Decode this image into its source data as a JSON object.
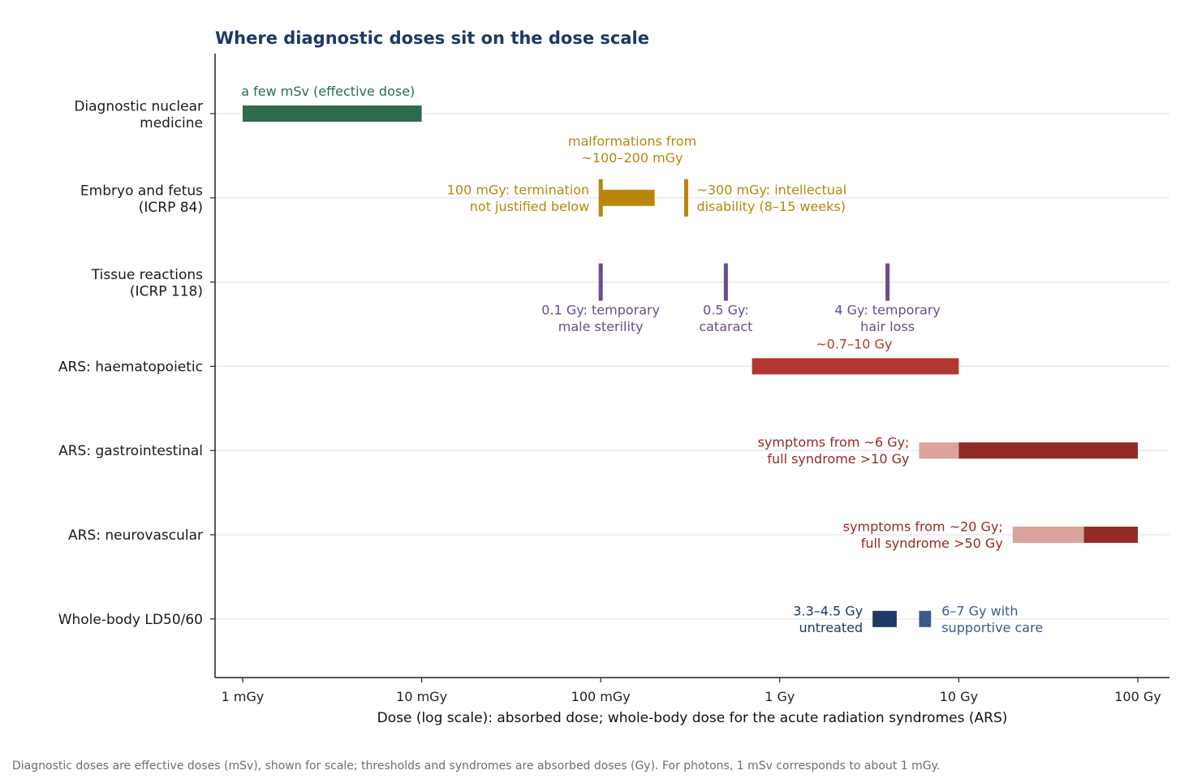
{
  "chart_data": {
    "type": "range-bar",
    "title": "Where diagnostic doses sit on the dose scale",
    "xlabel": "Dose (log scale): absorbed dose; whole-body dose for the acute radiation syndromes (ARS)",
    "x_scale": "log",
    "x_unit": "Gy",
    "xlim": [
      0.00085,
      150
    ],
    "grid": "horizontal",
    "x_ticks": [
      {
        "value": 0.001,
        "label": "1 mGy"
      },
      {
        "value": 0.01,
        "label": "10 mGy"
      },
      {
        "value": 0.1,
        "label": "100 mGy"
      },
      {
        "value": 1,
        "label": "1 Gy"
      },
      {
        "value": 10,
        "label": "10 Gy"
      },
      {
        "value": 100,
        "label": "100 Gy"
      }
    ],
    "rows": [
      {
        "label": [
          "Diagnostic nuclear",
          "medicine"
        ],
        "ranges": [
          {
            "from": 0.001,
            "to": 0.01,
            "color": "#2e6b4e"
          }
        ],
        "markers": [],
        "annotations": [
          {
            "lines": [
              "a few mSv (effective dose)"
            ],
            "x": 0.003,
            "pos": "above",
            "color": "#2e6b4e"
          }
        ]
      },
      {
        "label": [
          "Embryo and fetus",
          "(ICRP 84)"
        ],
        "ranges": [
          {
            "from": 0.1,
            "to": 0.2,
            "color": "#b8860b"
          }
        ],
        "markers": [
          {
            "x": 0.1,
            "color": "#b8860b"
          },
          {
            "x": 0.3,
            "color": "#b8860b"
          }
        ],
        "annotations": [
          {
            "lines": [
              "malformations from",
              "~100–200 mGy"
            ],
            "x": 0.15,
            "pos": "above-high",
            "color": "#b8860b"
          },
          {
            "lines": [
              "100 mGy: termination",
              "not justified below"
            ],
            "x": 0.1,
            "pos": "left",
            "color": "#b8860b"
          },
          {
            "lines": [
              "~300 mGy: intellectual",
              "disability (8–15 weeks)"
            ],
            "x": 0.3,
            "pos": "right",
            "color": "#b8860b"
          }
        ]
      },
      {
        "label": [
          "Tissue reactions",
          "(ICRP 118)"
        ],
        "ranges": [],
        "markers": [
          {
            "x": 0.1,
            "color": "#6b4c8e"
          },
          {
            "x": 0.5,
            "color": "#6b4c8e"
          },
          {
            "x": 4,
            "color": "#6b4c8e"
          }
        ],
        "annotations": [
          {
            "lines": [
              "0.1 Gy: temporary",
              "male sterility"
            ],
            "x": 0.1,
            "pos": "below",
            "color": "#6b4c8e"
          },
          {
            "lines": [
              "0.5 Gy:",
              "cataract"
            ],
            "x": 0.5,
            "pos": "below",
            "color": "#6b4c8e"
          },
          {
            "lines": [
              "4 Gy: temporary",
              "hair loss"
            ],
            "x": 4,
            "pos": "below",
            "color": "#6b4c8e"
          }
        ]
      },
      {
        "label": [
          "ARS: haematopoietic"
        ],
        "ranges": [
          {
            "from": 0.7,
            "to": 10,
            "color": "#b0382f"
          }
        ],
        "markers": [],
        "annotations": [
          {
            "lines": [
              "~0.7–10 Gy"
            ],
            "x": 2.6,
            "pos": "above",
            "color": "#b0382f"
          }
        ]
      },
      {
        "label": [
          "ARS: gastrointestinal"
        ],
        "ranges": [
          {
            "from": 6,
            "to": 10,
            "color": "#dba39c"
          },
          {
            "from": 10,
            "to": 100,
            "color": "#922a25"
          }
        ],
        "markers": [],
        "annotations": [
          {
            "lines": [
              "symptoms from ~6 Gy;",
              "full syndrome >10 Gy"
            ],
            "x": 6,
            "pos": "left",
            "color": "#922a25"
          }
        ]
      },
      {
        "label": [
          "ARS: neurovascular"
        ],
        "ranges": [
          {
            "from": 20,
            "to": 50,
            "color": "#dba39c"
          },
          {
            "from": 50,
            "to": 100,
            "color": "#922a25"
          }
        ],
        "markers": [],
        "annotations": [
          {
            "lines": [
              "symptoms from ~20 Gy;",
              "full syndrome >50 Gy"
            ],
            "x": 20,
            "pos": "left",
            "color": "#922a25"
          }
        ]
      },
      {
        "label": [
          "Whole-body LD50/60"
        ],
        "ranges": [
          {
            "from": 3.3,
            "to": 4.5,
            "color": "#1f3864"
          },
          {
            "from": 6,
            "to": 7,
            "color": "#3d5a8a"
          }
        ],
        "markers": [],
        "annotations": [
          {
            "lines": [
              "3.3–4.5 Gy",
              "untreated"
            ],
            "x": 3.3,
            "pos": "left",
            "color": "#1f3864"
          },
          {
            "lines": [
              "6–7 Gy with",
              "supportive care"
            ],
            "x": 7,
            "pos": "right",
            "color": "#3d5a8a"
          }
        ]
      }
    ]
  },
  "footnote": "Diagnostic doses are effective doses (mSv), shown for scale; thresholds and syndromes are absorbed doses (Gy). For photons, 1 mSv corresponds to about 1 mGy.",
  "colors": {
    "title": "#1f3864",
    "axis": "#222222",
    "gridline": "#e5e5e5",
    "footnote": "#6e6e6e"
  }
}
